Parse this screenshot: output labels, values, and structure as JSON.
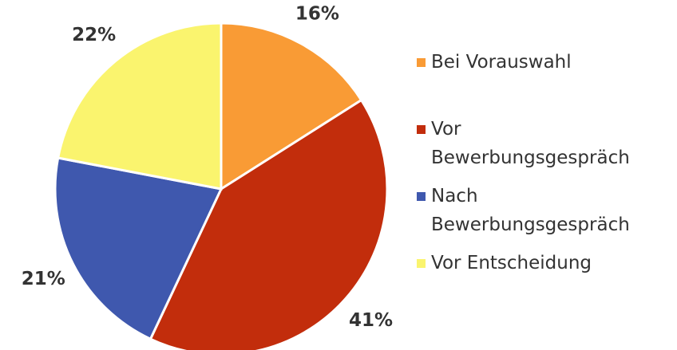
{
  "chart_data": {
    "type": "pie",
    "categories": [
      "Bei Vorauswahl",
      "Vor Bewerbungsgespräch",
      "Nach Bewerbungsgespräch",
      "Vor Entscheidung"
    ],
    "values": [
      16,
      41,
      21,
      22
    ],
    "value_labels": [
      "16%",
      "41%",
      "21%",
      "22%"
    ],
    "colors": [
      "#f99b35",
      "#c22d0c",
      "#3f58ae",
      "#faf46e"
    ],
    "legend": "right"
  }
}
